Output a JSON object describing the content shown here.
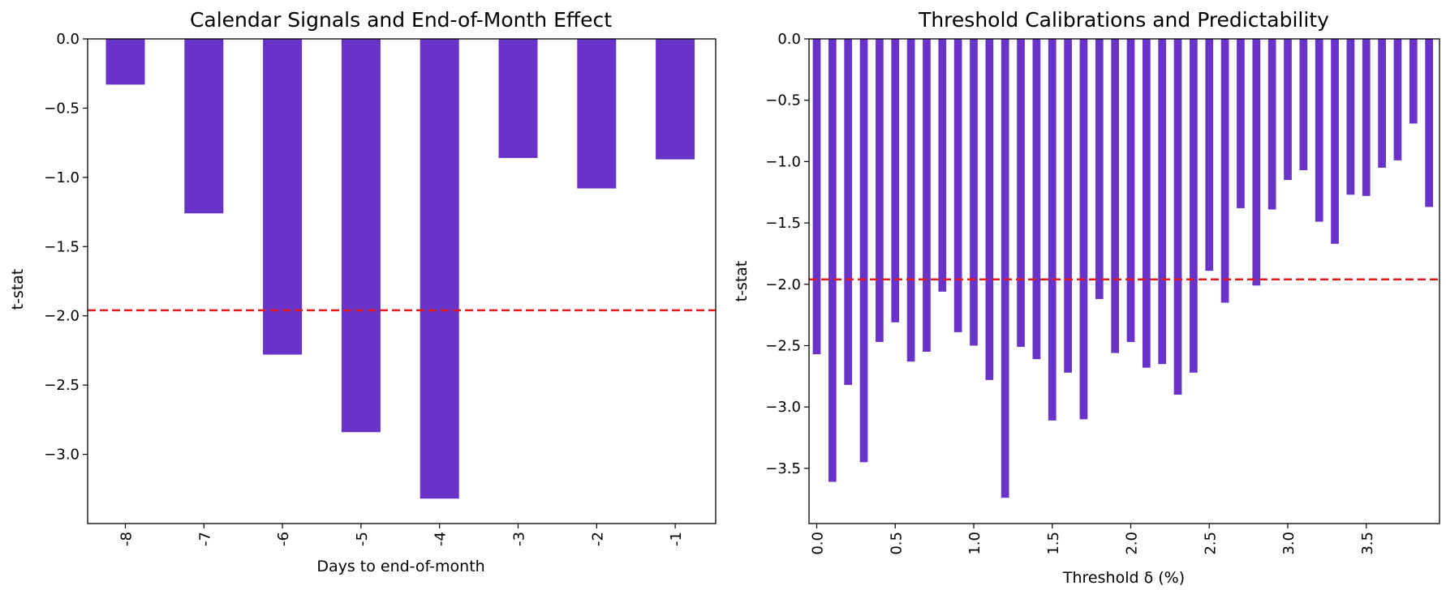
{
  "chart_data": [
    {
      "type": "bar",
      "title": "Calendar Signals and End-of-Month Effect",
      "xlabel": "Days to end-of-month",
      "ylabel": "t-stat",
      "categories": [
        "-8",
        "-7",
        "-6",
        "-5",
        "-4",
        "-3",
        "-2",
        "-1"
      ],
      "values": [
        -0.33,
        -1.26,
        -2.28,
        -2.84,
        -3.32,
        -0.86,
        -1.08,
        -0.87
      ],
      "ylim": [
        -3.5,
        0.0
      ],
      "yticks": [
        0.0,
        -0.5,
        -1.0,
        -1.5,
        -2.0,
        -2.5,
        -3.0
      ],
      "ytick_labels": [
        "0.0",
        "−0.5",
        "−1.0",
        "−1.5",
        "−2.0",
        "−2.5",
        "−3.0"
      ],
      "reference_line": -1.96,
      "bar_color": "#6932c8",
      "reference_color": "#e31a1c",
      "grid": false
    },
    {
      "type": "bar",
      "title": "Threshold Calibrations and Predictability",
      "xlabel": "Threshold δ (%)",
      "ylabel": "t-stat",
      "x": [
        0.0,
        0.1,
        0.2,
        0.3,
        0.4,
        0.5,
        0.6,
        0.7,
        0.8,
        0.9,
        1.0,
        1.1,
        1.2,
        1.3,
        1.4,
        1.5,
        1.6,
        1.7,
        1.8,
        1.9,
        2.0,
        2.1,
        2.2,
        2.3,
        2.4,
        2.5,
        2.6,
        2.7,
        2.8,
        2.9,
        3.0,
        3.1,
        3.2,
        3.3,
        3.4,
        3.5,
        3.6,
        3.7,
        3.8,
        3.9
      ],
      "values": [
        -2.57,
        -3.61,
        -2.82,
        -3.45,
        -2.47,
        -2.31,
        -2.63,
        -2.55,
        -2.06,
        -2.39,
        -2.5,
        -2.78,
        -3.74,
        -2.51,
        -2.61,
        -3.11,
        -2.72,
        -3.1,
        -2.12,
        -2.56,
        -2.47,
        -2.68,
        -2.65,
        -2.9,
        -2.72,
        -1.89,
        -2.15,
        -1.38,
        -2.01,
        -1.39,
        -1.15,
        -1.07,
        -1.49,
        -1.67,
        -1.27,
        -1.28,
        -1.05,
        -0.99,
        -0.69,
        -1.37
      ],
      "ylim": [
        -3.95,
        0.0
      ],
      "yticks": [
        0.0,
        -0.5,
        -1.0,
        -1.5,
        -2.0,
        -2.5,
        -3.0,
        -3.5
      ],
      "ytick_labels": [
        "0.0",
        "−0.5",
        "−1.0",
        "−1.5",
        "−2.0",
        "−2.5",
        "−3.0",
        "−3.5"
      ],
      "xticks": [
        0.0,
        0.5,
        1.0,
        1.5,
        2.0,
        2.5,
        3.0,
        3.5
      ],
      "xtick_labels": [
        "0.0",
        "0.5",
        "1.0",
        "1.5",
        "2.0",
        "2.5",
        "3.0",
        "3.5"
      ],
      "reference_line": -1.96,
      "bar_color": "#6932c8",
      "reference_color": "#e31a1c",
      "grid": false
    }
  ]
}
